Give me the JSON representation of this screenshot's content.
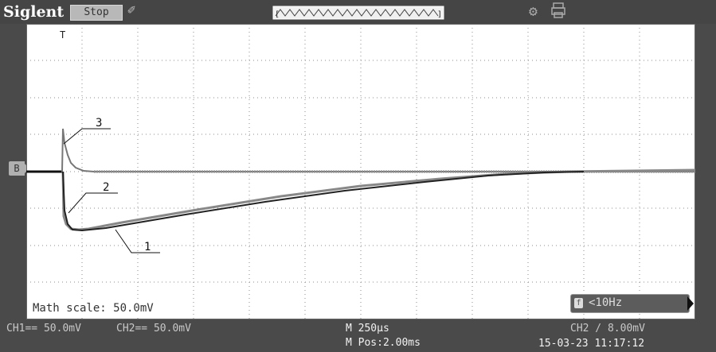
{
  "header": {
    "brand": "Siglent",
    "run_state": "Stop",
    "icons": [
      "pen-icon",
      "usb-icon",
      "printer-icon"
    ]
  },
  "screen": {
    "trigger_marker": "T",
    "channel_marker": "B",
    "trace_labels": [
      "3",
      "2",
      "1"
    ],
    "math_scale_label": "Math scale: 50.0mV",
    "freq_indicator": "<10Hz"
  },
  "status_bar": {
    "ch1": "CH1== 50.0mV",
    "ch2": "CH2== 50.0mV",
    "timebase": "M 250µs",
    "position": "M Pos:2.00ms",
    "trigger": "CH2 / 8.00mV",
    "datetime": "15-03-23 11:17:12"
  },
  "colors": {
    "background": "#4a4a4a",
    "screen": "#ffffff",
    "trace_dark": "#222222",
    "trace_gray": "#8a8a8a"
  }
}
